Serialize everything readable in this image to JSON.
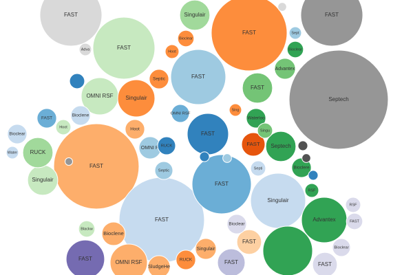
{
  "chart_data": {
    "type": "packed-bubble",
    "categories": [
      "FAST",
      "FAST",
      "FAST",
      "FAST",
      "Septech",
      "FAST",
      "FAST",
      "FAST",
      "FAST",
      "Singulair",
      "Advantex",
      null,
      "FAST",
      "FAST",
      "OMNI RSF",
      "OMNI RSF",
      "Singulair",
      "FAST",
      "Septech",
      "Singulair",
      "RUCK",
      "Singulair",
      "Advantex",
      "Bioclear",
      "FAST",
      "Bioclear",
      "Bioclene",
      "Hoot",
      "FAST",
      "Waterloo",
      "FAST",
      "FAST",
      "Singulair",
      "FAST",
      "Bioclere",
      "FAST",
      "RSF",
      "Bioclear",
      "SludgeHe",
      "Septic",
      "OMNI R",
      "RUCK",
      "OMNI RSF",
      "Septic",
      "Hoot",
      "RUCK",
      "Bioclear",
      "Bioclene",
      "Blackw",
      "Bioclear",
      "Sept",
      "Singu",
      "Septi",
      "RSF",
      "Adva",
      "Hoot",
      "Water",
      null,
      "Sing",
      null,
      null,
      null,
      null,
      null,
      null,
      null
    ],
    "values": [
      20.3,
      20.3,
      30.3,
      20.3,
      51.8,
      16,
      38.4,
      38.4,
      18.5,
      16,
      10.9,
      13,
      9,
      7.8,
      7.3,
      7.3,
      7.3,
      4.8,
      4.8,
      4.8,
      4.8,
      4.8,
      2.3,
      1.4,
      2,
      2,
      2,
      1.2,
      2.9,
      2,
      4,
      3.2,
      2.3,
      3.2,
      2,
      1.4,
      1.2,
      1.7,
      2.6,
      2,
      2.6,
      1.7,
      1.7,
      1.7,
      2,
      2,
      2,
      2.9,
      1.4,
      1.4,
      0.8,
      1.2,
      1.2,
      1,
      0.8,
      1,
      0.8,
      1.2,
      0.8,
      0.5,
      0.4,
      0.5,
      0.3,
      0.4,
      0.5,
      0.4
    ],
    "colors": [
      "#d9d9d9",
      "#c7e9c0",
      "#fd8d3c",
      "#969696",
      "#969696",
      "#9ecae1",
      "#fdae6b",
      "#c6dbef",
      "#6baed6",
      "#c6dbef",
      "#31a354",
      "#31a354",
      "#3182bd",
      "#756bb1",
      "#fdae6b",
      "#c7e9c0",
      "#fd8d3c",
      "#74c476",
      "#31a354",
      "#c7e9c0",
      "#a1d99b",
      "#a1d99b",
      "#74c476",
      "#31a354",
      "#6baed6",
      "#c6dbef",
      "#c6dbef",
      "#c7e9c0",
      "#e6550d",
      "#31a354",
      "#bcbddc",
      "#fdd0a2",
      "#fdae6b",
      "#dadaeb",
      "#31a354",
      "#dadaeb",
      "#dadaeb",
      "#dadaeb",
      "#fdae6b",
      "#fd8d3c",
      "#9ecae1",
      "#3182bd",
      "#6baed6",
      "#9ecae1",
      "#fdae6b",
      "#fd8d3c",
      "#dadaeb",
      "#fdae6b",
      "#c7e9c0",
      "#fd8d3c",
      "#9ecae1",
      "#74c476",
      "#c6dbef",
      "#31a354",
      "#d9d9d9",
      "#fd8d3c",
      "#c6dbef",
      "#3182bd",
      "#fd8d3c",
      "#525252",
      "#525252",
      "#3182bd",
      "#969696",
      "#d9d9d9",
      "#3182bd",
      "#9ecae1"
    ]
  }
}
